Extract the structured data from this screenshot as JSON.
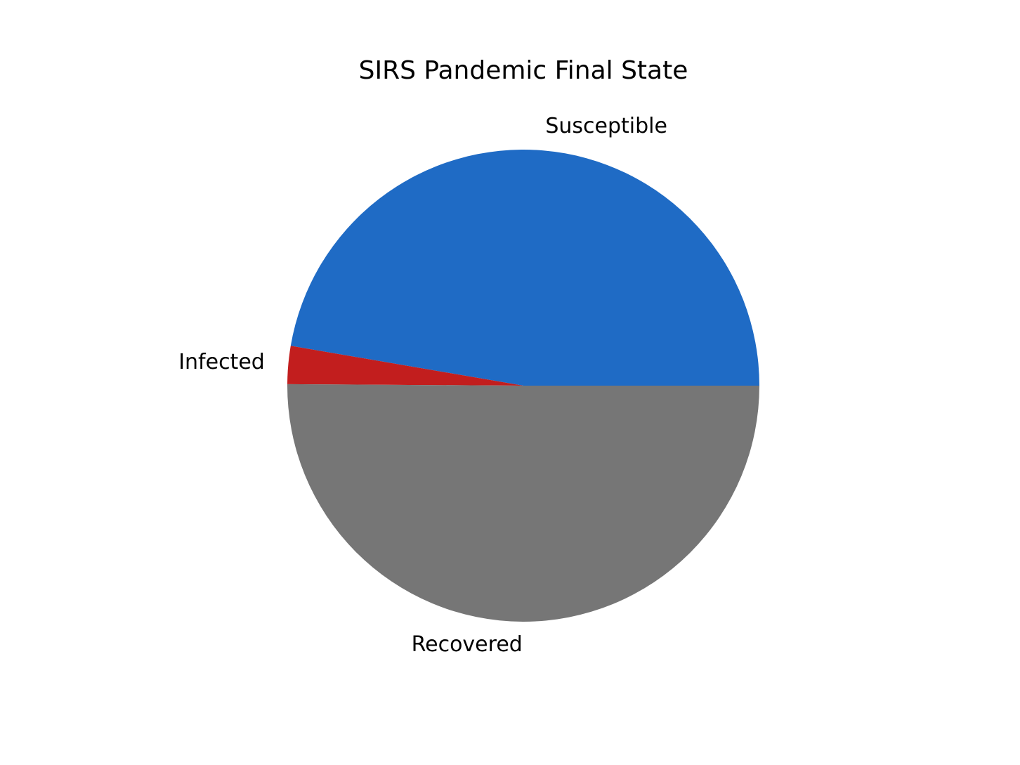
{
  "chart_data": {
    "type": "pie",
    "title": "SIRS Pandemic Final State",
    "start_angle_deg": 0,
    "direction": "counterclockwise",
    "labels": [
      "Susceptible",
      "Infected",
      "Recovered"
    ],
    "values": [
      47.3,
      2.6,
      50.1
    ],
    "colors": [
      "#1f6bc5",
      "#c21e1e",
      "#767676"
    ],
    "legend": "none"
  }
}
